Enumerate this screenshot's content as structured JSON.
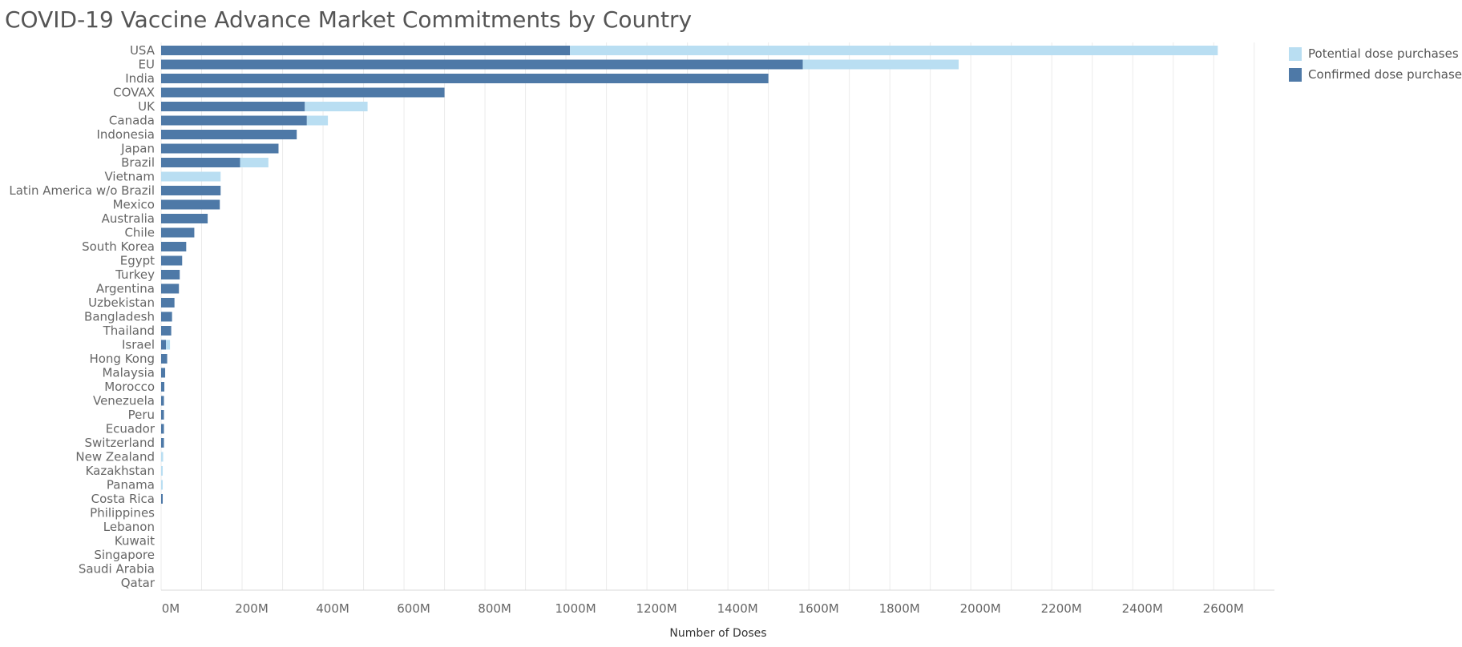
{
  "page_title": "COVID-19 Vaccine Advance Market Commitments by Country",
  "legend": {
    "potential_label": "Potential dose purchases",
    "confirmed_label": "Confirmed dose purchases"
  },
  "colors": {
    "confirmed": "#4e79a7",
    "potential": "#b9def2",
    "grid": "#ebebeb",
    "title": "#555555"
  },
  "chart_data": {
    "type": "bar",
    "orientation": "horizontal",
    "stacked": true,
    "title": "COVID-19 Vaccine Advance Market Commitments by Country",
    "xlabel": "Number of Doses",
    "ylabel": "",
    "xlim": [
      0,
      2750
    ],
    "unit": "M",
    "x_ticks": [
      "0M",
      "200M",
      "400M",
      "600M",
      "800M",
      "1000M",
      "1200M",
      "1400M",
      "1600M",
      "1800M",
      "2000M",
      "2200M",
      "2400M",
      "2600M"
    ],
    "legend_position": "top-right",
    "grid": true,
    "categories": [
      "USA",
      "EU",
      "India",
      "COVAX",
      "UK",
      "Canada",
      "Indonesia",
      "Japan",
      "Brazil",
      "Vietnam",
      "Latin America w/o Brazil",
      "Mexico",
      "Australia",
      "Chile",
      "South Korea",
      "Egypt",
      "Turkey",
      "Argentina",
      "Uzbekistan",
      "Bangladesh",
      "Thailand",
      "Israel",
      "Hong Kong",
      "Malaysia",
      "Morocco",
      "Venezuela",
      "Peru",
      "Ecuador",
      "Switzerland",
      "New Zealand",
      "Kazakhstan",
      "Panama",
      "Costa Rica",
      "Philippines",
      "Lebanon",
      "Kuwait",
      "Singapore",
      "Saudi Arabia",
      "Qatar"
    ],
    "series": [
      {
        "name": "Confirmed dose purchases",
        "values": [
          1010,
          1585,
          1500,
          700,
          355,
          360,
          335,
          290,
          195,
          0,
          147,
          145,
          115,
          82,
          62,
          52,
          46,
          44,
          33,
          27,
          25,
          12,
          15,
          10,
          8,
          7,
          7,
          7,
          7,
          0,
          0,
          0,
          4,
          0,
          0,
          0,
          0,
          0,
          0
        ]
      },
      {
        "name": "Potential dose purchases",
        "values": [
          1600,
          385,
          0,
          0,
          155,
          52,
          0,
          0,
          70,
          147,
          0,
          0,
          0,
          0,
          0,
          0,
          0,
          0,
          0,
          0,
          0,
          10,
          0,
          0,
          0,
          0,
          0,
          0,
          0,
          5,
          4,
          4,
          0,
          0,
          0,
          0,
          0,
          0,
          0
        ]
      }
    ]
  }
}
